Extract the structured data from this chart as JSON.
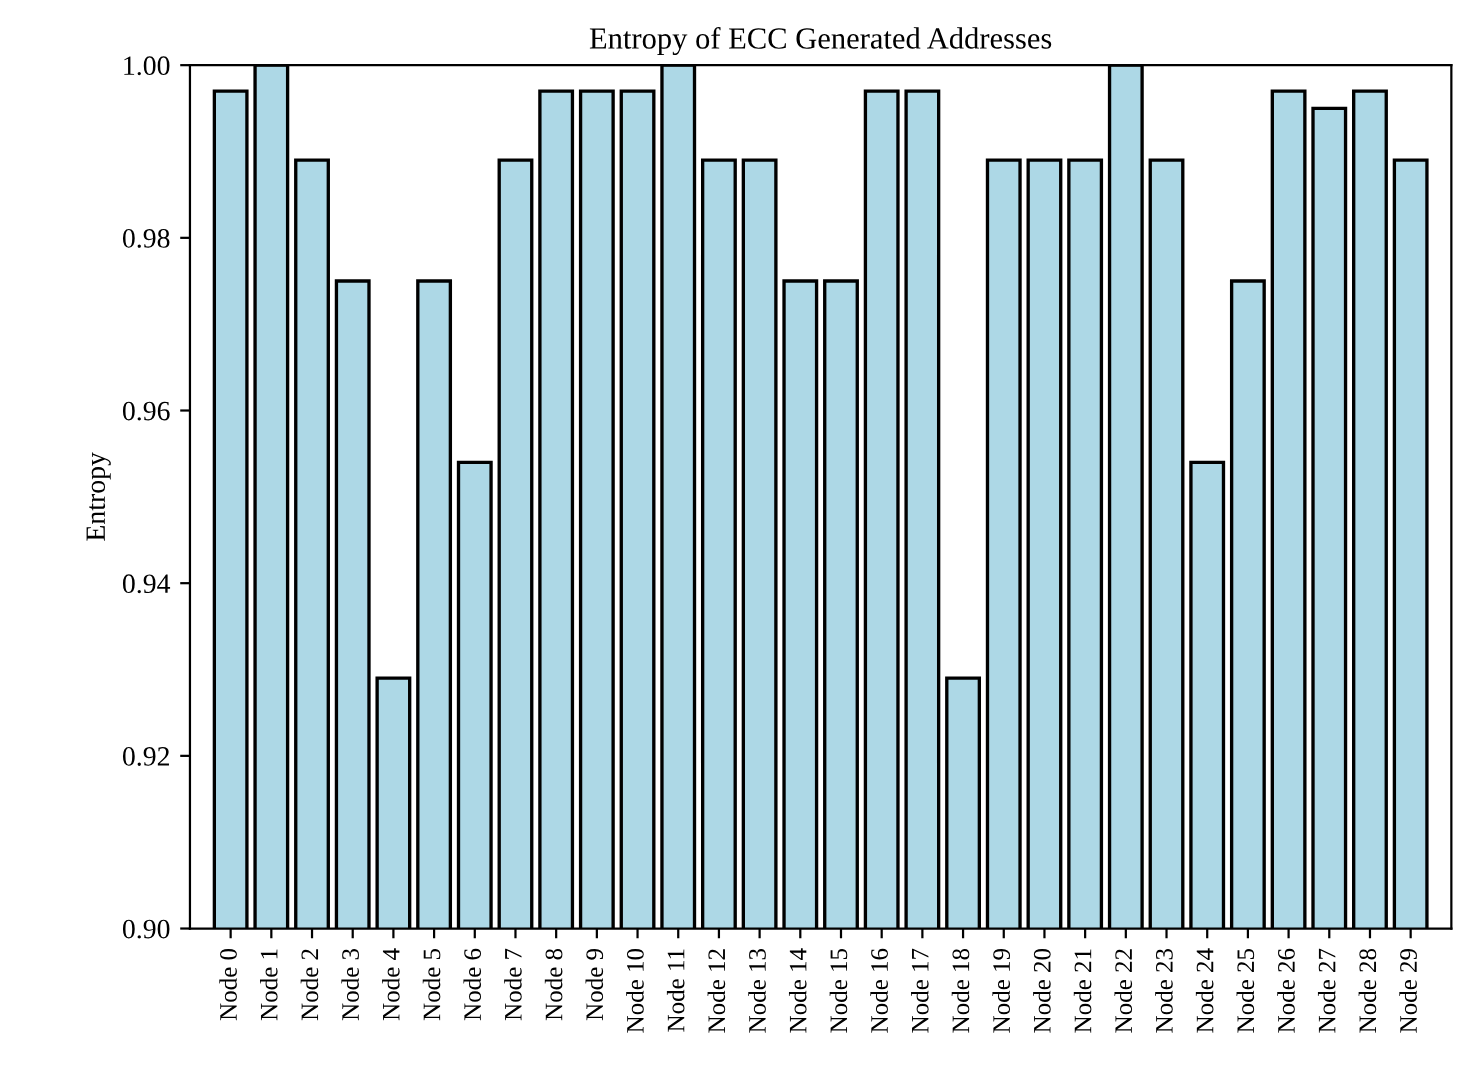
{
  "chart_data": {
    "type": "bar",
    "title": "Entropy of ECC Generated Addresses",
    "ylabel": "Entropy",
    "categories": [
      "Node 0",
      "Node 1",
      "Node 2",
      "Node 3",
      "Node 4",
      "Node 5",
      "Node 6",
      "Node 7",
      "Node 8",
      "Node 9",
      "Node 10",
      "Node 11",
      "Node 12",
      "Node 13",
      "Node 14",
      "Node 15",
      "Node 16",
      "Node 17",
      "Node 18",
      "Node 19",
      "Node 20",
      "Node 21",
      "Node 22",
      "Node 23",
      "Node 24",
      "Node 25",
      "Node 26",
      "Node 27",
      "Node 28",
      "Node 29"
    ],
    "values": [
      0.997,
      1.0,
      0.989,
      0.975,
      0.929,
      0.975,
      0.954,
      0.989,
      0.997,
      0.997,
      0.997,
      1.0,
      0.989,
      0.989,
      0.975,
      0.975,
      0.997,
      0.997,
      0.929,
      0.989,
      0.989,
      0.989,
      1.0,
      0.989,
      0.954,
      0.975,
      0.997,
      0.995,
      0.997,
      0.989
    ],
    "color": "#add8e6",
    "ylim": [
      0.9,
      1.0
    ],
    "yticks": [
      {
        "value": 0.9,
        "label": "0.90"
      },
      {
        "value": 0.92,
        "label": "0.92"
      },
      {
        "value": 0.94,
        "label": "0.94"
      },
      {
        "value": 0.96,
        "label": "0.96"
      },
      {
        "value": 0.98,
        "label": "0.98"
      },
      {
        "value": 1.0,
        "label": "1.00"
      }
    ],
    "grid": false,
    "legend": false
  }
}
